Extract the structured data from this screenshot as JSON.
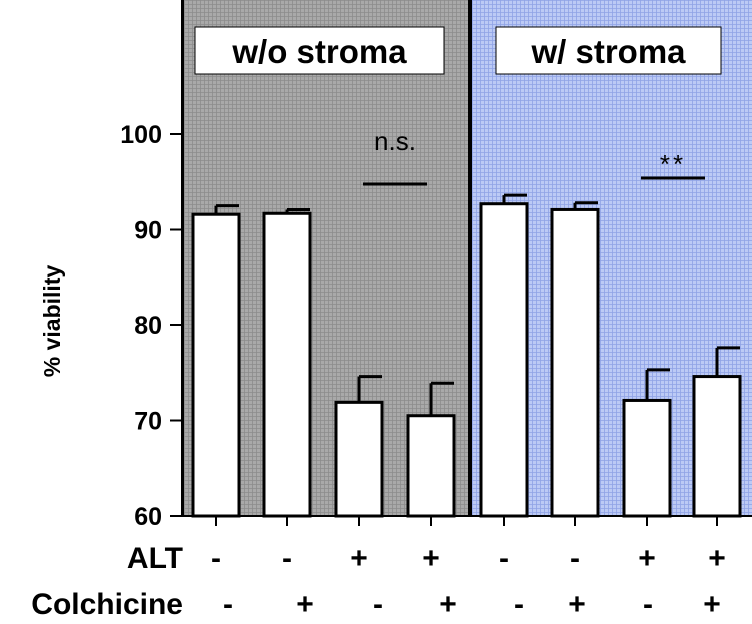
{
  "chart_data": {
    "type": "bar",
    "ylabel": "% viability",
    "ylim": [
      60,
      100
    ],
    "yticks": [
      "60",
      "70",
      "80",
      "90",
      "100"
    ],
    "panels": [
      {
        "title": "w/o stroma",
        "background": "#a6a6a6",
        "values": [
          91.6,
          91.7,
          71.9,
          70.5
        ],
        "errors": [
          0.9,
          0.4,
          2.7,
          3.4
        ],
        "significance": "n.s."
      },
      {
        "title": "w/ stroma",
        "background": "#b3c1f2",
        "values": [
          92.7,
          92.1,
          72.1,
          74.6
        ],
        "errors": [
          0.9,
          0.7,
          3.2,
          3.0
        ],
        "significance": "**"
      }
    ],
    "treatments": [
      {
        "label": "ALT",
        "signs": [
          "-",
          "-",
          "+",
          "+",
          "-",
          "-",
          "+",
          "+"
        ]
      },
      {
        "label": "Colchicine",
        "signs": [
          "-",
          "+",
          "-",
          "+",
          "-",
          "+",
          "-",
          "+"
        ]
      }
    ],
    "bar_color": "#ffffff",
    "line_color": "#000000"
  }
}
